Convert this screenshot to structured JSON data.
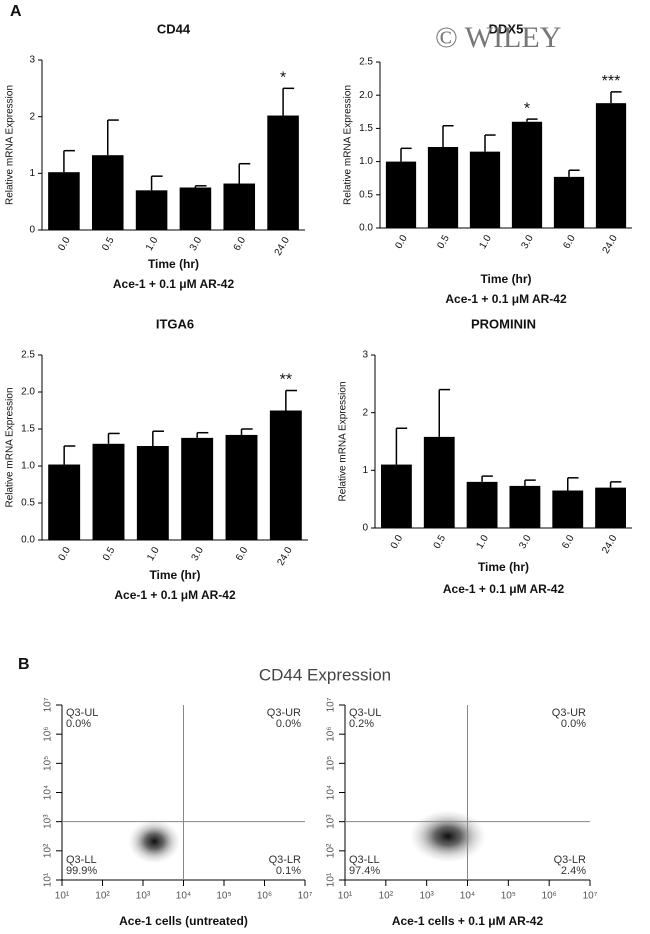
{
  "panel_labels": [
    "A",
    "B"
  ],
  "watermark": "© WILEY",
  "flow_title": "CD44 Expression",
  "chart_data": [
    {
      "type": "bar",
      "title": "CD44",
      "xlabel": "Time (hr)",
      "subtitle": "Ace-1 + 0.1 μM AR-42",
      "ylabel": "Relative mRNA Expression",
      "categories": [
        "0.0",
        "0.5",
        "1.0",
        "3.0",
        "6.0",
        "24.0"
      ],
      "values": [
        1.02,
        1.32,
        0.7,
        0.75,
        0.82,
        2.02
      ],
      "errors": [
        0.38,
        0.62,
        0.25,
        0.03,
        0.35,
        0.48
      ],
      "significance": [
        null,
        null,
        null,
        null,
        null,
        "*"
      ],
      "color": "#000000",
      "ylim": [
        0,
        3
      ],
      "yticks": [
        0,
        1,
        2,
        3
      ]
    },
    {
      "type": "bar",
      "title": "DDX5",
      "xlabel": "Time (hr)",
      "subtitle": "Ace-1 + 0.1 μM AR-42",
      "ylabel": "Relative mRNA Expression",
      "categories": [
        "0.0",
        "0.5",
        "1.0",
        "3.0",
        "6.0",
        "24.0"
      ],
      "values": [
        1.0,
        1.22,
        1.15,
        1.6,
        0.77,
        1.88
      ],
      "errors": [
        0.2,
        0.32,
        0.25,
        0.04,
        0.1,
        0.17
      ],
      "significance": [
        null,
        null,
        null,
        "*",
        null,
        "***"
      ],
      "color": "#000000",
      "ylim": [
        0,
        2.5
      ],
      "yticks": [
        {
          "value": 0,
          "label": "0.0"
        },
        0.5,
        {
          "value": 1,
          "label": "1.0"
        },
        1.5,
        {
          "value": 2,
          "label": "2.0"
        },
        2.5
      ]
    },
    {
      "type": "bar",
      "title": "ITGA6",
      "xlabel": "Time (hr)",
      "subtitle": "Ace-1 + 0.1 μM AR-42",
      "ylabel": "Relative mRNA Expression",
      "categories": [
        "0.0",
        "0.5",
        "1.0",
        "3.0",
        "6.0",
        "24.0"
      ],
      "values": [
        1.02,
        1.3,
        1.27,
        1.38,
        1.42,
        1.75
      ],
      "errors": [
        0.25,
        0.14,
        0.2,
        0.07,
        0.08,
        0.27
      ],
      "significance": [
        null,
        null,
        null,
        null,
        null,
        "**"
      ],
      "color": "#000000",
      "ylim": [
        0,
        2.5
      ],
      "yticks": [
        {
          "value": 0,
          "label": "0.0"
        },
        0.5,
        {
          "value": 1,
          "label": "1.0"
        },
        1.5,
        {
          "value": 2,
          "label": "2.0"
        },
        2.5
      ]
    },
    {
      "type": "bar",
      "title": "PROMININ",
      "xlabel": "Time (hr)",
      "subtitle": "Ace-1 + 0.1 μM AR-42",
      "ylabel": "Relative mRNA Expression",
      "categories": [
        "0.0",
        "0.5",
        "1.0",
        "3.0",
        "6.0",
        "24.0"
      ],
      "values": [
        1.1,
        1.58,
        0.8,
        0.73,
        0.65,
        0.7
      ],
      "errors": [
        0.63,
        0.82,
        0.1,
        0.1,
        0.22,
        0.1
      ],
      "significance": [
        null,
        null,
        null,
        null,
        null,
        null
      ],
      "color": "#000000",
      "ylim": [
        0,
        3
      ],
      "yticks": [
        0,
        1,
        2,
        3
      ]
    },
    {
      "type": "flow",
      "xlabel": "Ace-1 cells (untreated)",
      "log": true,
      "quadrants": [
        "Q3-UL",
        "Q3-UR",
        "Q3-LL",
        "Q3-LR"
      ],
      "values": [
        0.0,
        0.0,
        99.9,
        0.1
      ],
      "value_labels": [
        "0.0%",
        "0.0%",
        "99.9%",
        "0.1%"
      ],
      "gate": [
        10000,
        1000
      ],
      "xlim": [
        10,
        10000000
      ],
      "ylim": [
        10,
        10000000
      ],
      "xticks": [
        {
          "value": 10,
          "label": "10¹"
        },
        {
          "value": 100,
          "label": "10²"
        },
        {
          "value": 1000,
          "label": "10³"
        },
        {
          "value": 10000,
          "label": "10⁴"
        },
        {
          "value": 100000,
          "label": "10⁵"
        },
        {
          "value": 1000000,
          "label": "10⁶"
        },
        {
          "value": 10000000,
          "label": "10⁷"
        }
      ],
      "yticks": [
        {
          "value": 10,
          "label": "10¹"
        },
        {
          "value": 100,
          "label": "10²"
        },
        {
          "value": 1000,
          "label": "10³"
        },
        {
          "value": 10000,
          "label": "10⁴"
        },
        {
          "value": 100000,
          "label": "10⁵"
        },
        {
          "value": 1000000,
          "label": "10⁶"
        },
        {
          "value": 10000000,
          "label": "10⁷"
        }
      ]
    },
    {
      "type": "flow",
      "xlabel": "Ace-1 cells + 0.1 μM AR-42",
      "log": true,
      "quadrants": [
        "Q3-UL",
        "Q3-UR",
        "Q3-LL",
        "Q3-LR"
      ],
      "values": [
        0.2,
        0.0,
        97.4,
        2.4
      ],
      "value_labels": [
        "0.2%",
        "0.0%",
        "97.4%",
        "2.4%"
      ],
      "gate": [
        10000,
        1000
      ],
      "xlim": [
        10,
        10000000
      ],
      "ylim": [
        10,
        10000000
      ],
      "xticks": [
        {
          "value": 10,
          "label": "10¹"
        },
        {
          "value": 100,
          "label": "10²"
        },
        {
          "value": 1000,
          "label": "10³"
        },
        {
          "value": 10000,
          "label": "10⁴"
        },
        {
          "value": 100000,
          "label": "10⁵"
        },
        {
          "value": 1000000,
          "label": "10⁶"
        },
        {
          "value": 10000000,
          "label": "10⁷"
        }
      ],
      "yticks": [
        {
          "value": 10,
          "label": "10¹"
        },
        {
          "value": 100,
          "label": "10²"
        },
        {
          "value": 1000,
          "label": "10³"
        },
        {
          "value": 10000,
          "label": "10⁴"
        },
        {
          "value": 100000,
          "label": "10⁵"
        },
        {
          "value": 1000000,
          "label": "10⁶"
        },
        {
          "value": 10000000,
          "label": "10⁷"
        }
      ]
    }
  ]
}
